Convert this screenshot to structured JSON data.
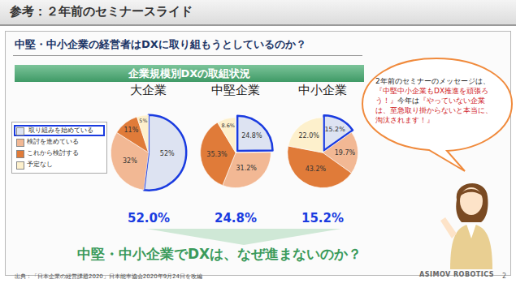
{
  "slide": {
    "header": "参考：２年前のセミナースライド",
    "question": "中堅・中小企業の経営者はDXに取り組もうとしているのか？",
    "banner": "企業規模別DXの取組状況",
    "callout": [
      "2年前のセミナーのメッセージは、",
      "『中堅中小企業もDX推進を頑張ろう！』",
      "今年は",
      "『やっていない企業は、至急取り掛からないと本当に、淘汰されます！』"
    ],
    "conclusion": "中堅・中小企業でDXは、なぜ進まないのか？",
    "source": "出典：「日本企業の経営課題2020」日本能率協会2020年9月24日を改編",
    "logo": "ASIMOV ROBOTICS",
    "page": "2"
  },
  "chart_data": [
    {
      "type": "pie",
      "title": "大企業",
      "labels": [
        "取り組みを始めている",
        "検討を進めている",
        "これから検討する",
        "予定なし"
      ],
      "values": [
        52,
        32,
        11,
        5
      ],
      "value_labels": [
        "52%",
        "32%",
        "11%",
        "5%"
      ],
      "colors": [
        "#dde3f2",
        "#f2b894",
        "#e07b39",
        "#fdf0cc"
      ],
      "data_labels": true,
      "legend": "left",
      "annotations": [
        "52.0%"
      ]
    },
    {
      "type": "pie",
      "title": "中堅企業",
      "labels": [
        "取り組みを始めている",
        "検討を進めている",
        "これから検討する",
        "予定なし"
      ],
      "values": [
        24.8,
        31.2,
        35.3,
        8.6
      ],
      "value_labels": [
        "24.8%",
        "31.2%",
        "35.3%",
        "8.6%"
      ],
      "colors": [
        "#dde3f2",
        "#f2b894",
        "#e07b39",
        "#fdf0cc"
      ],
      "data_labels": true,
      "annotations": [
        "24.8%"
      ]
    },
    {
      "type": "pie",
      "title": "中小企業",
      "labels": [
        "取り組みを始めている",
        "検討を進めている",
        "これから検討する",
        "予定なし"
      ],
      "values": [
        15.2,
        19.7,
        43.2,
        22.0
      ],
      "value_labels": [
        "15.2%",
        "19.7%",
        "43.2%",
        "22.0%"
      ],
      "colors": [
        "#dde3f2",
        "#f2b894",
        "#e07b39",
        "#fdf0cc"
      ],
      "data_labels": true,
      "annotations": [
        "15.2%"
      ]
    }
  ]
}
